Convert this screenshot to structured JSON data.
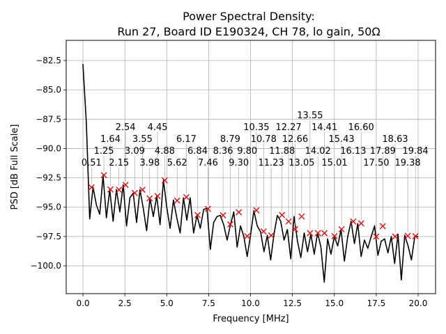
{
  "chart_data": {
    "type": "line",
    "title_line1": "Power Spectral Density:",
    "title_line2": "Run 27, Board ID E190324, CH 78, lo gain, 50Ω",
    "xlabel": "Frequency [MHz]",
    "ylabel": "PSD [dB Full Scale]",
    "xlim": [
      -1.0,
      21.04
    ],
    "ylim": [
      -102.37,
      -80.78
    ],
    "grid": true,
    "xticks": [
      0.0,
      2.5,
      5.0,
      7.5,
      10.0,
      12.5,
      15.0,
      17.5,
      20.0
    ],
    "xtick_labels": [
      "0.0",
      "2.5",
      "5.0",
      "7.5",
      "10.0",
      "12.5",
      "15.0",
      "17.5",
      "20.0"
    ],
    "yticks": [
      -82.5,
      -85.0,
      -87.5,
      -90.0,
      -92.5,
      -95.0,
      -97.5,
      -100.0
    ],
    "ytick_labels": [
      "−82.5",
      "−85.0",
      "−87.5",
      "−90.0",
      "−92.5",
      "−95.0",
      "−97.5",
      "−100.0"
    ],
    "line_color": "#000000",
    "marker_color": "#ff0000",
    "series": {
      "name": "PSD",
      "x_start": 0,
      "x_step": 0.2,
      "values": [
        -82.8,
        -87.8,
        -96.0,
        -93.3,
        -94.8,
        -95.6,
        -92.3,
        -95.9,
        -93.5,
        -96.2,
        -93.5,
        -95.4,
        -93.1,
        -96.6,
        -94.2,
        -93.8,
        -96.3,
        -93.5,
        -95.1,
        -97.0,
        -94.25,
        -95.8,
        -94.05,
        -96.5,
        -92.7,
        -95.0,
        -96.8,
        -94.4,
        -95.9,
        -97.2,
        -94.2,
        -96.1,
        -94.2,
        -97.2,
        -95.7,
        -96.8,
        -95.2,
        -95.1,
        -98.6,
        -96.3,
        -95.8,
        -95.7,
        -96.5,
        -97.8,
        -96.5,
        -95.4,
        -98.4,
        -96.6,
        -97.5,
        -99.2,
        -97.4,
        -95.3,
        -96.6,
        -97.1,
        -98.8,
        -97.4,
        -99.5,
        -97.3,
        -95.7,
        -96.2,
        -97.8,
        -96.9,
        -99.4,
        -95.8,
        -97.9,
        -99.3,
        -97.2,
        -98.8,
        -97.3,
        -99.0,
        -97.2,
        -98.4,
        -101.4,
        -97.7,
        -99.0,
        -97.5,
        -98.3,
        -96.9,
        -99.6,
        -97.5,
        -96.2,
        -98.1,
        -96.4,
        -99.2,
        -97.8,
        -98.5,
        -97.5,
        -96.6,
        -99.1,
        -97.9,
        -97.7,
        -98.9,
        -97.5,
        -99.8,
        -97.3,
        -101.2,
        -97.4,
        -98.3,
        -99.5,
        -97.5,
        -97.5
      ]
    },
    "peaks": [
      {
        "x": 0.51,
        "y": -93.31,
        "label": "0.51"
      },
      {
        "x": 1.25,
        "y": -92.27,
        "label": "1.25"
      },
      {
        "x": 1.64,
        "y": -93.49,
        "label": "1.64"
      },
      {
        "x": 2.15,
        "y": -93.52,
        "label": "2.15"
      },
      {
        "x": 2.54,
        "y": -93.1,
        "label": "2.54"
      },
      {
        "x": 3.09,
        "y": -93.79,
        "label": "3.09"
      },
      {
        "x": 3.55,
        "y": -93.52,
        "label": "3.55"
      },
      {
        "x": 3.98,
        "y": -94.25,
        "label": "3.98"
      },
      {
        "x": 4.45,
        "y": -94.05,
        "label": "4.45"
      },
      {
        "x": 4.88,
        "y": -92.72,
        "label": "4.88"
      },
      {
        "x": 5.62,
        "y": -94.44,
        "label": "5.62"
      },
      {
        "x": 6.17,
        "y": -94.15,
        "label": "6.17"
      },
      {
        "x": 6.84,
        "y": -95.67,
        "label": "6.84"
      },
      {
        "x": 7.46,
        "y": -95.14,
        "label": "7.46"
      },
      {
        "x": 8.36,
        "y": -95.69,
        "label": "8.36"
      },
      {
        "x": 8.79,
        "y": -96.46,
        "label": "8.79"
      },
      {
        "x": 9.3,
        "y": -95.43,
        "label": "9.30"
      },
      {
        "x": 9.8,
        "y": -97.47,
        "label": "9.80"
      },
      {
        "x": 10.35,
        "y": -95.27,
        "label": "10.35"
      },
      {
        "x": 10.78,
        "y": -97.07,
        "label": "10.78"
      },
      {
        "x": 11.23,
        "y": -97.41,
        "label": "11.23"
      },
      {
        "x": 11.88,
        "y": -95.67,
        "label": "11.88"
      },
      {
        "x": 12.27,
        "y": -96.22,
        "label": "12.27"
      },
      {
        "x": 12.66,
        "y": -96.88,
        "label": "12.66"
      },
      {
        "x": 13.05,
        "y": -95.79,
        "label": "13.05"
      },
      {
        "x": 13.55,
        "y": -97.21,
        "label": "13.55"
      },
      {
        "x": 14.02,
        "y": -97.21,
        "label": "14.02"
      },
      {
        "x": 14.41,
        "y": -97.21,
        "label": "14.41"
      },
      {
        "x": 15.01,
        "y": -97.47,
        "label": "15.01"
      },
      {
        "x": 15.43,
        "y": -96.88,
        "label": "15.43"
      },
      {
        "x": 16.13,
        "y": -96.22,
        "label": "16.13"
      },
      {
        "x": 16.6,
        "y": -96.38,
        "label": "16.60"
      },
      {
        "x": 17.5,
        "y": -97.5,
        "label": "17.50"
      },
      {
        "x": 17.89,
        "y": -96.62,
        "label": "17.89"
      },
      {
        "x": 18.63,
        "y": -97.5,
        "label": "18.63"
      },
      {
        "x": 19.38,
        "y": -97.45,
        "label": "19.38"
      },
      {
        "x": 19.84,
        "y": -97.47,
        "label": "19.84"
      }
    ]
  }
}
